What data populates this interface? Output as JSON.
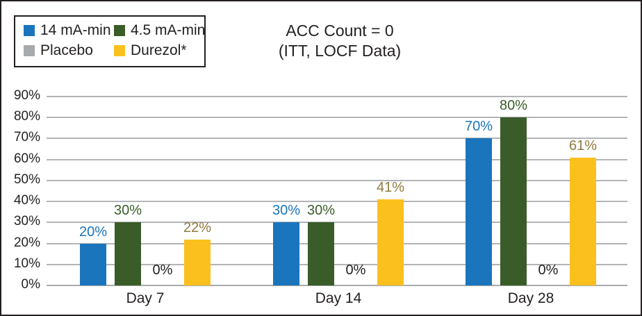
{
  "title": {
    "line1": "ACC Count = 0",
    "line2": "(ITT, LOCF Data)"
  },
  "legend": {
    "position": "top-left",
    "items": [
      {
        "label": "14 mA-min",
        "color": "#1b75bc"
      },
      {
        "label": "4.5 mA-min",
        "color": "#3a5c29"
      },
      {
        "label": "Placebo",
        "color": "#a8aaad"
      },
      {
        "label": "Durezol*",
        "color": "#fcc01e"
      }
    ]
  },
  "chart_data": {
    "type": "bar",
    "title": "ACC Count = 0",
    "subtitle": "(ITT, LOCF Data)",
    "categories": [
      "Day 7",
      "Day 14",
      "Day 28"
    ],
    "series": [
      {
        "name": "14 mA-min",
        "color": "#1b75bc",
        "label_color": "#1b75bc",
        "values": [
          20,
          30,
          70
        ]
      },
      {
        "name": "4.5 mA-min",
        "color": "#3a5c29",
        "label_color": "#3a5c29",
        "values": [
          30,
          30,
          80
        ]
      },
      {
        "name": "Placebo",
        "color": "#a8aaad",
        "label_color": "#231f20",
        "values": [
          0,
          0,
          0
        ]
      },
      {
        "name": "Durezol*",
        "color": "#fcc01e",
        "label_color": "#8f7b3d",
        "values": [
          22,
          41,
          61
        ]
      }
    ],
    "y_axis": {
      "min": 0,
      "max": 90,
      "step": 10,
      "tick_labels": [
        "0%",
        "10%",
        "20%",
        "30%",
        "40%",
        "50%",
        "60%",
        "70%",
        "80%",
        "90%"
      ]
    },
    "value_suffix": "%",
    "grid": true,
    "legend_position": "top-left",
    "xlabel": "",
    "ylabel": ""
  },
  "colors": {
    "gridline": "#b2b4b6",
    "baseline": "#a8aaad",
    "text": "#231f20",
    "border": "#231f20"
  }
}
